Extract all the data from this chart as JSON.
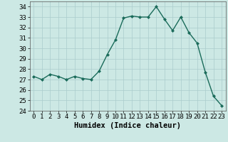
{
  "x": [
    0,
    1,
    2,
    3,
    4,
    5,
    6,
    7,
    8,
    9,
    10,
    11,
    12,
    13,
    14,
    15,
    16,
    17,
    18,
    19,
    20,
    21,
    22,
    23
  ],
  "y": [
    27.3,
    27.0,
    27.5,
    27.3,
    27.0,
    27.3,
    27.1,
    27.0,
    27.8,
    29.4,
    30.8,
    32.9,
    33.1,
    33.0,
    33.0,
    34.0,
    32.8,
    31.7,
    33.0,
    31.5,
    30.5,
    27.7,
    25.4,
    24.5
  ],
  "line_color": "#1a6b5a",
  "marker": "D",
  "marker_size": 2.0,
  "bg_color": "#cce8e4",
  "grid_color": "#aacccc",
  "xlabel": "Humidex (Indice chaleur)",
  "ylim": [
    24,
    34.5
  ],
  "xlim": [
    -0.5,
    23.5
  ],
  "yticks": [
    24,
    25,
    26,
    27,
    28,
    29,
    30,
    31,
    32,
    33,
    34
  ],
  "xticks": [
    0,
    1,
    2,
    3,
    4,
    5,
    6,
    7,
    8,
    9,
    10,
    11,
    12,
    13,
    14,
    15,
    16,
    17,
    18,
    19,
    20,
    21,
    22,
    23
  ],
  "xlabel_fontsize": 7.5,
  "tick_fontsize": 6.5,
  "linewidth": 1.0
}
